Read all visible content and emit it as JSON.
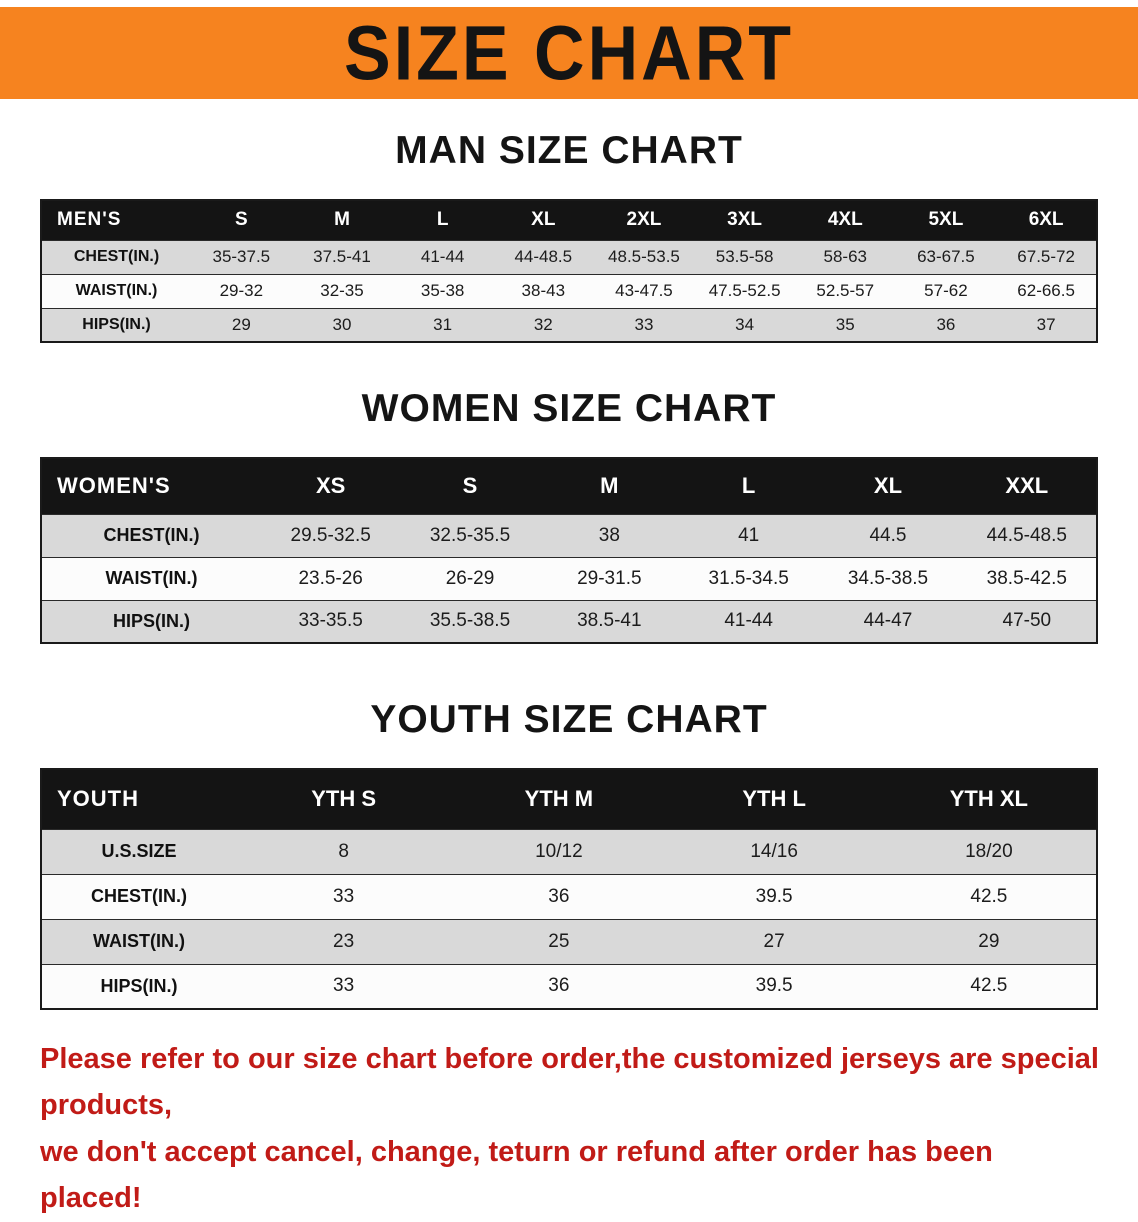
{
  "banner": {
    "title": "SIZE CHART",
    "bg_color": "#f6831f"
  },
  "colors": {
    "banner-bg": "#f6831f",
    "header-bg": "#141414",
    "row-gray": "#d9d9d9",
    "disclaimer-red": "#c11b17"
  },
  "sections": [
    {
      "id": "man",
      "heading": "MAN SIZE CHART",
      "table": {
        "corner_label": "MEN'S",
        "columns": [
          "S",
          "M",
          "L",
          "XL",
          "2XL",
          "3XL",
          "4XL",
          "5XL",
          "6XL"
        ],
        "rows": [
          {
            "label": "CHEST(IN.)",
            "values": [
              "35-37.5",
              "37.5-41",
              "41-44",
              "44-48.5",
              "48.5-53.5",
              "53.5-58",
              "58-63",
              "63-67.5",
              "67.5-72"
            ]
          },
          {
            "label": "WAIST(IN.)",
            "values": [
              "29-32",
              "32-35",
              "35-38",
              "38-43",
              "43-47.5",
              "47.5-52.5",
              "52.5-57",
              "57-62",
              "62-66.5"
            ]
          },
          {
            "label": "HIPS(IN.)",
            "values": [
              "29",
              "30",
              "31",
              "32",
              "33",
              "34",
              "35",
              "36",
              "37"
            ]
          }
        ]
      }
    },
    {
      "id": "women",
      "heading": "WOMEN SIZE CHART",
      "table": {
        "corner_label": "WOMEN'S",
        "columns": [
          "XS",
          "S",
          "M",
          "L",
          "XL",
          "XXL"
        ],
        "rows": [
          {
            "label": "CHEST(IN.)",
            "values": [
              "29.5-32.5",
              "32.5-35.5",
              "38",
              "41",
              "44.5",
              "44.5-48.5"
            ]
          },
          {
            "label": "WAIST(IN.)",
            "values": [
              "23.5-26",
              "26-29",
              "29-31.5",
              "31.5-34.5",
              "34.5-38.5",
              "38.5-42.5"
            ]
          },
          {
            "label": "HIPS(IN.)",
            "values": [
              "33-35.5",
              "35.5-38.5",
              "38.5-41",
              "41-44",
              "44-47",
              "47-50"
            ]
          }
        ]
      }
    },
    {
      "id": "youth",
      "heading": "YOUTH SIZE CHART",
      "table": {
        "corner_label": "YOUTH",
        "columns": [
          "YTH S",
          "YTH M",
          "YTH L",
          "YTH XL"
        ],
        "rows": [
          {
            "label": "U.S.SIZE",
            "values": [
              "8",
              "10/12",
              "14/16",
              "18/20"
            ]
          },
          {
            "label": "CHEST(IN.)",
            "values": [
              "33",
              "36",
              "39.5",
              "42.5"
            ]
          },
          {
            "label": "WAIST(IN.)",
            "values": [
              "23",
              "25",
              "27",
              "29"
            ]
          },
          {
            "label": "HIPS(IN.)",
            "values": [
              "33",
              "36",
              "39.5",
              "42.5"
            ]
          }
        ]
      }
    }
  ],
  "disclaimer": {
    "line1": "Please refer to our size chart before order,the customized jerseys are special products,",
    "line2": "we don't accept cancel, change, teturn or refund after order has been placed!",
    "color": "#c11b17"
  }
}
